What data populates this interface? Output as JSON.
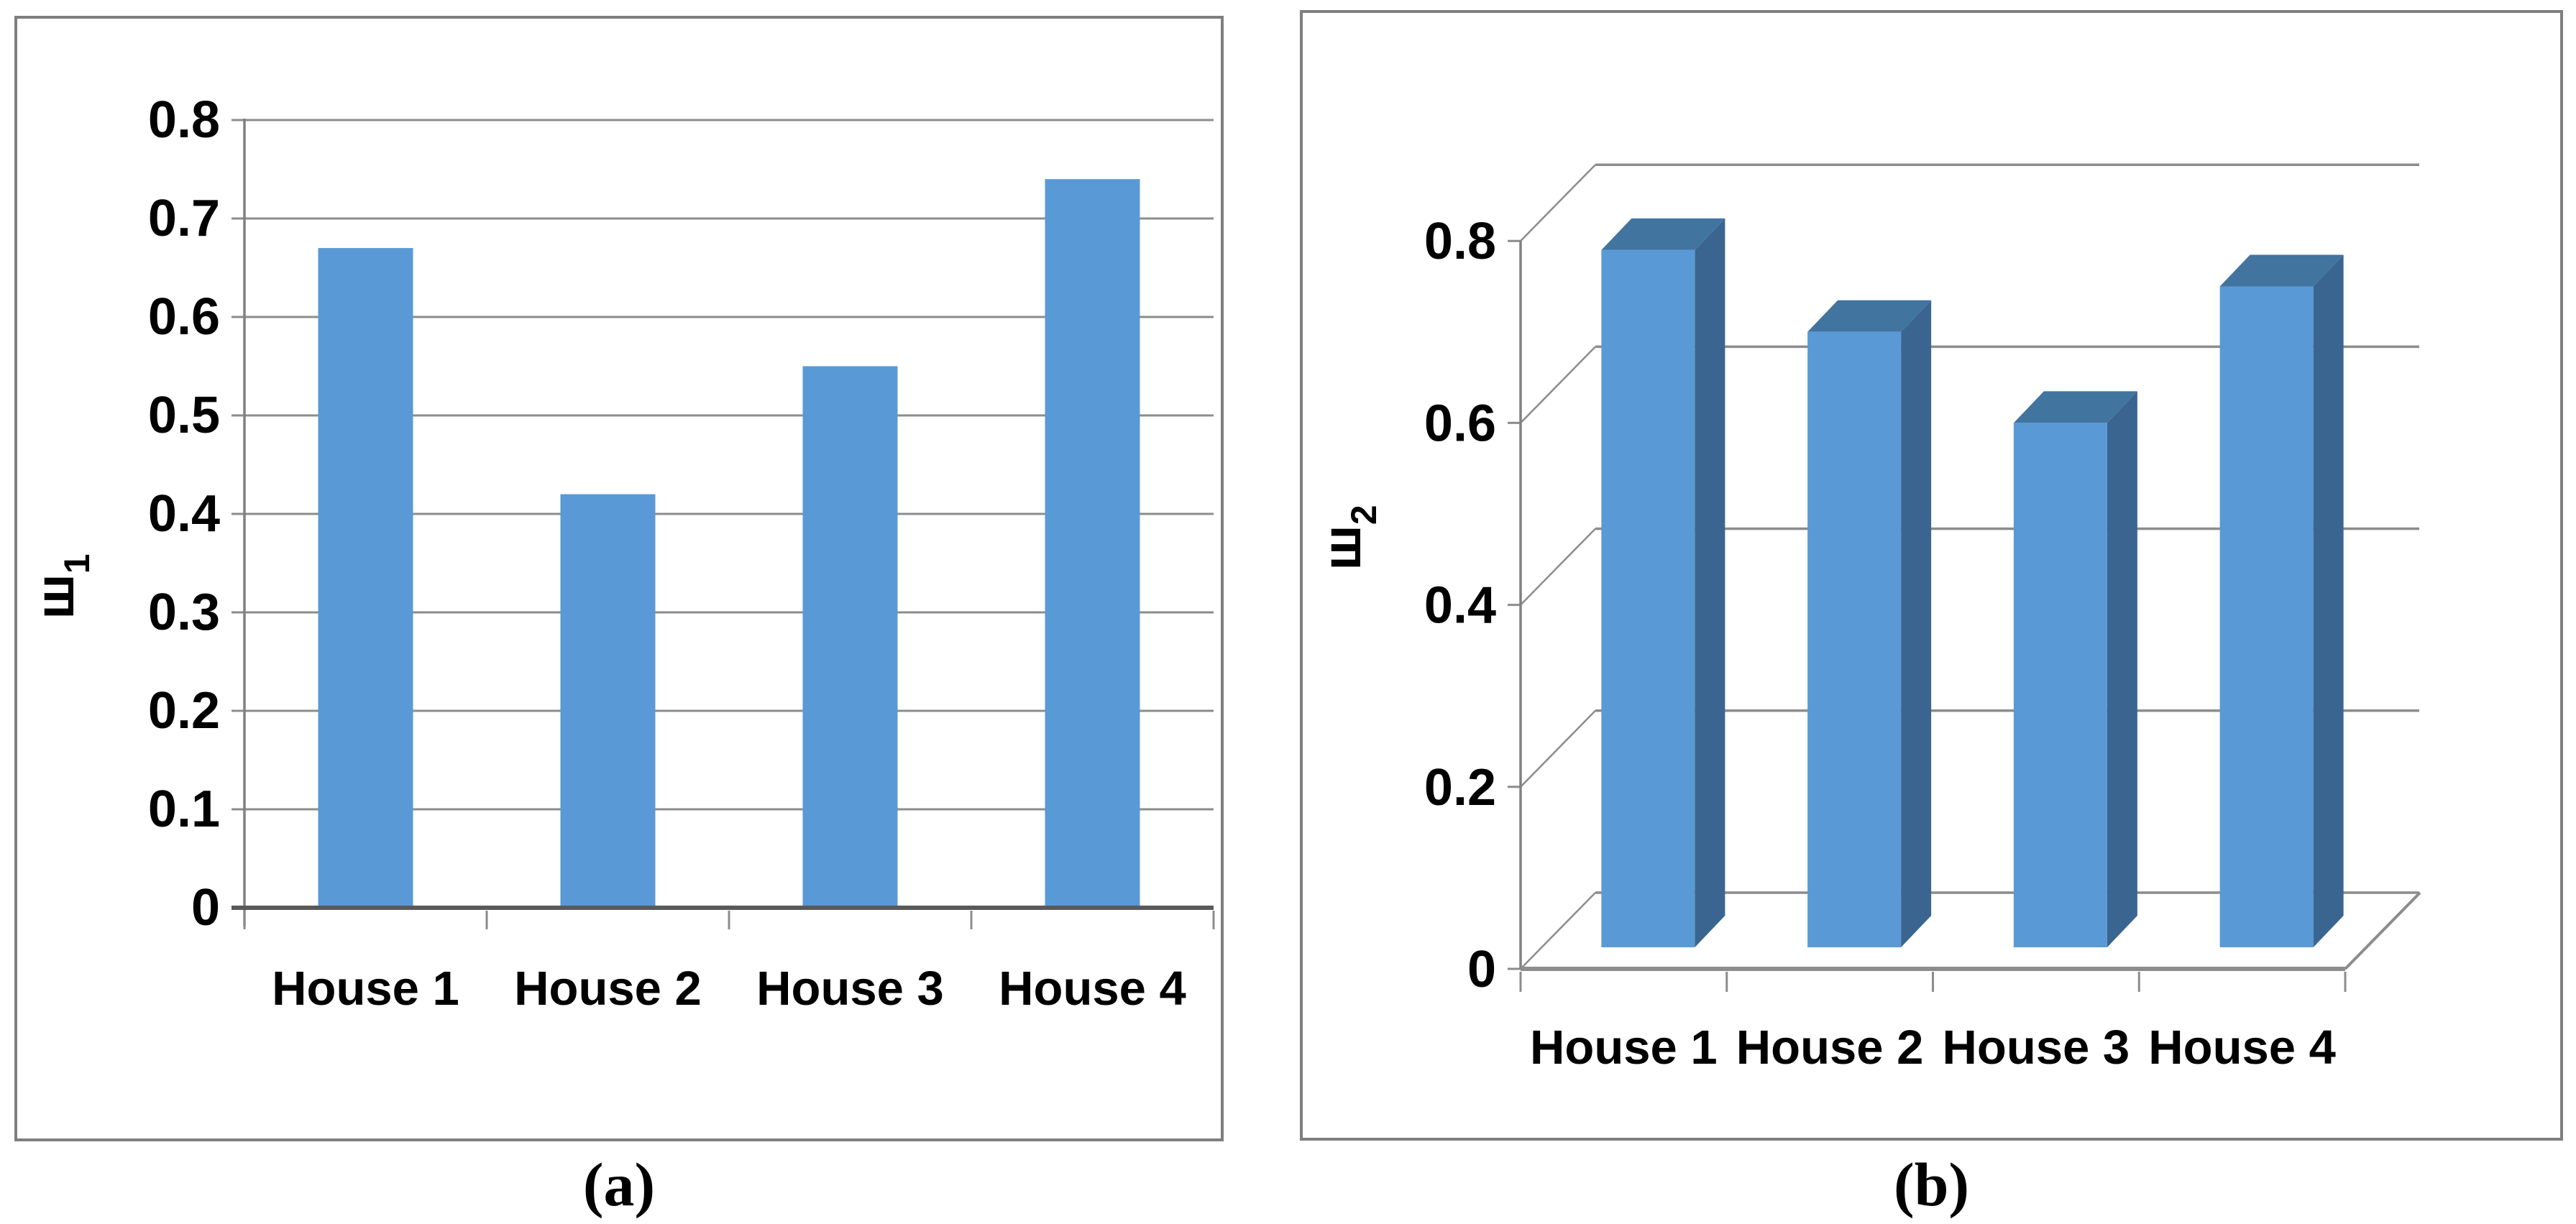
{
  "captions": {
    "a": "(a)",
    "b": "(b)"
  },
  "colors": {
    "bar_front": "#5999D6",
    "bar_top": "#4274A0",
    "bar_side": "#3A6590",
    "gridline": "#8C8C8C",
    "axis_line": "#808080",
    "baseline_dark": "#595959",
    "panel_border": "#7F7F7F",
    "text": "#000000",
    "background": "#FFFFFF"
  },
  "chart_data": [
    {
      "id": "a",
      "type": "bar",
      "projection": "2d",
      "title": "",
      "categories": [
        "House 1",
        "House 2",
        "House 3",
        "House 4"
      ],
      "values": [
        0.67,
        0.42,
        0.55,
        0.74
      ],
      "xlabel": "",
      "ylabel": "ш",
      "ylabel_sub": "1",
      "ylim": [
        0,
        0.8
      ],
      "ytick_step": 0.1,
      "yticks": [
        "0",
        "0.1",
        "0.2",
        "0.3",
        "0.4",
        "0.5",
        "0.6",
        "0.7",
        "0.8"
      ],
      "grid": true,
      "legend": false
    },
    {
      "id": "b",
      "type": "bar",
      "projection": "3d",
      "title": "",
      "categories": [
        "House 1",
        "House 2",
        "House 3",
        "House 4"
      ],
      "values": [
        0.79,
        0.7,
        0.6,
        0.75
      ],
      "xlabel": "",
      "ylabel": "ш",
      "ylabel_sub": "2",
      "ylim": [
        0,
        0.8
      ],
      "ytick_step": 0.2,
      "yticks": [
        "0",
        "0.2",
        "0.4",
        "0.6",
        "0.8"
      ],
      "grid": true,
      "legend": false
    }
  ]
}
